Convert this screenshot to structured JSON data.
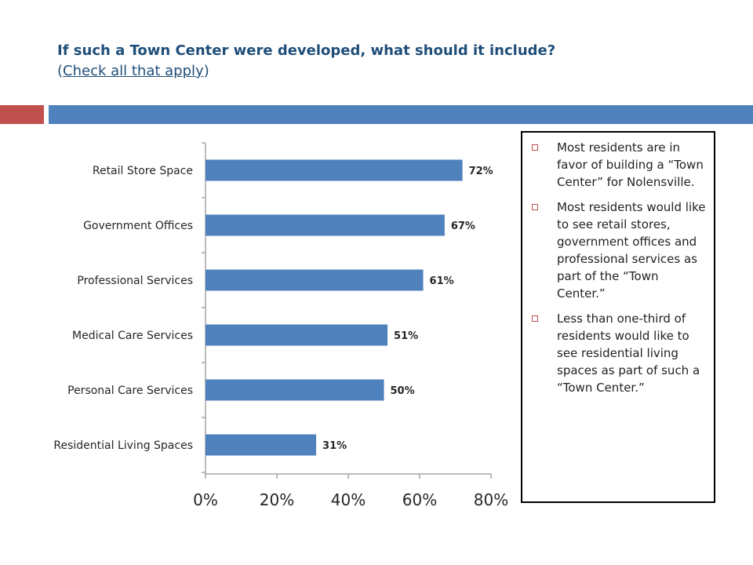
{
  "header": {
    "title_line1": "If such a Town Center were developed, what should it include?",
    "title_line2_open": "(",
    "title_line2_link": "Check all that apply",
    "title_line2_close": ")"
  },
  "colors": {
    "accent_red": "#c0504d",
    "accent_blue": "#4f81bd",
    "bar_fill": "#4f81bd",
    "title_text": "#1f4e79"
  },
  "notes": {
    "bullets": [
      "Most residents are in favor of building a “Town Center” for Nolensville.",
      "Most residents would like to see retail stores, government offices and professional services as part of the “Town Center.”",
      "Less than one-third of residents would like to see residential living spaces as part of such a “Town Center.”"
    ]
  },
  "chart_data": {
    "type": "bar",
    "orientation": "horizontal",
    "categories": [
      "Retail Store Space",
      "Government Offices",
      "Professional Services",
      "Medical Care Services",
      "Personal Care Services",
      "Residential Living Spaces"
    ],
    "values": [
      72,
      67,
      61,
      51,
      50,
      31
    ],
    "data_labels": [
      "72%",
      "67%",
      "61%",
      "51%",
      "50%",
      "31%"
    ],
    "xlim": [
      0,
      80
    ],
    "xticks": [
      0,
      20,
      40,
      60,
      80
    ],
    "xtick_labels": [
      "0%",
      "20%",
      "40%",
      "60%",
      "80%"
    ],
    "grid": false,
    "legend": "none"
  }
}
